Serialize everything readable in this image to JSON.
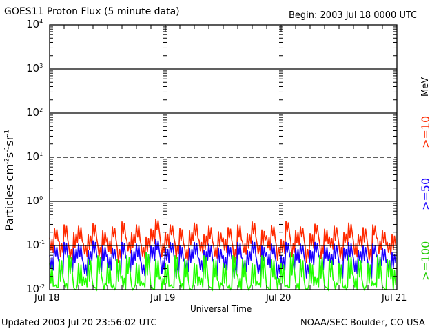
{
  "chart_data": {
    "type": "line",
    "title": "GOES11 Proton Flux (5 minute data)",
    "begin": "Begin: 2003 Jul 18 0000 UTC",
    "xlabel": "Universal Time",
    "ylabel": {
      "main": "Particles cm",
      "e1": "-2",
      "s": "s",
      "e2": "-1",
      "sr": "sr",
      "e3": "-1"
    },
    "yscale": "log",
    "ylim": [
      0.01,
      10000
    ],
    "yticks": [
      {
        "base": "10",
        "exp": "4",
        "value": 10000
      },
      {
        "base": "10",
        "exp": "3",
        "value": 1000
      },
      {
        "base": "10",
        "exp": "2",
        "value": 100
      },
      {
        "base": "10",
        "exp": "1",
        "value": 10
      },
      {
        "base": "10",
        "exp": "0",
        "value": 1
      },
      {
        "base": "10",
        "exp": "-1",
        "value": 0.1
      },
      {
        "base": "10",
        "exp": "-2",
        "value": 0.01
      }
    ],
    "xlim_days": [
      0,
      3
    ],
    "xticks": [
      {
        "label": "Jul 18",
        "day": 0
      },
      {
        "label": "Jul 19",
        "day": 1
      },
      {
        "label": "Jul 20",
        "day": 2
      },
      {
        "label": "Jul 21",
        "day": 3
      }
    ],
    "gridlines": [
      {
        "value": 1000,
        "style": "solid"
      },
      {
        "value": 100,
        "style": "solid"
      },
      {
        "value": 10,
        "style": "dashed"
      },
      {
        "value": 1,
        "style": "solid"
      },
      {
        "value": 0.1,
        "style": "solid"
      }
    ],
    "x_hours_step": 1,
    "series": [
      {
        "name": ">=10",
        "color": "#ff2a00",
        "values": [
          0.15,
          0.25,
          0.12,
          0.3,
          0.09,
          0.2,
          0.28,
          0.11,
          0.18,
          0.32,
          0.1,
          0.22,
          0.14,
          0.27,
          0.09,
          0.35,
          0.13,
          0.2,
          0.3,
          0.1,
          0.16,
          0.24,
          0.4,
          0.12,
          0.2,
          0.3,
          0.11,
          0.25,
          0.09,
          0.22,
          0.33,
          0.13,
          0.18,
          0.28,
          0.1,
          0.21,
          0.15,
          0.26,
          0.09,
          0.3,
          0.12,
          0.19,
          0.35,
          0.11,
          0.23,
          0.17,
          0.29,
          0.1,
          0.14,
          0.36,
          0.12,
          0.22,
          0.27,
          0.09,
          0.19,
          0.31,
          0.11,
          0.24,
          0.16,
          0.28,
          0.1,
          0.2,
          0.33,
          0.12,
          0.18,
          0.26,
          0.09,
          0.3,
          0.14,
          0.22,
          0.12,
          0.18
        ]
      },
      {
        "name": ">=50",
        "color": "#1a00ff",
        "values": [
          0.06,
          0.1,
          0.04,
          0.12,
          0.05,
          0.09,
          0.11,
          0.04,
          0.08,
          0.13,
          0.05,
          0.1,
          0.06,
          0.09,
          0.04,
          0.12,
          0.05,
          0.08,
          0.11,
          0.04,
          0.07,
          0.1,
          0.14,
          0.05,
          0.09,
          0.12,
          0.04,
          0.1,
          0.05,
          0.09,
          0.12,
          0.05,
          0.08,
          0.11,
          0.04,
          0.09,
          0.06,
          0.1,
          0.04,
          0.12,
          0.05,
          0.08,
          0.13,
          0.04,
          0.1,
          0.07,
          0.11,
          0.04,
          0.06,
          0.12,
          0.05,
          0.09,
          0.11,
          0.04,
          0.08,
          0.12,
          0.05,
          0.1,
          0.07,
          0.11,
          0.04,
          0.09,
          0.12,
          0.05,
          0.08,
          0.1,
          0.04,
          0.11,
          0.06,
          0.09,
          0.05,
          0.07
        ]
      },
      {
        "name": ">=100",
        "color": "#22ff00",
        "values": [
          0.04,
          0.012,
          0.05,
          0.015,
          0.06,
          0.011,
          0.04,
          0.02,
          0.05,
          0.012,
          0.06,
          0.015,
          0.04,
          0.011,
          0.05,
          0.02,
          0.06,
          0.012,
          0.04,
          0.015,
          0.07,
          0.011,
          0.05,
          0.02,
          0.04,
          0.012,
          0.06,
          0.015,
          0.05,
          0.011,
          0.04,
          0.02,
          0.06,
          0.012,
          0.05,
          0.015,
          0.04,
          0.011,
          0.06,
          0.02,
          0.05,
          0.012,
          0.04,
          0.015,
          0.06,
          0.011,
          0.05,
          0.02,
          0.04,
          0.012,
          0.07,
          0.015,
          0.05,
          0.011,
          0.04,
          0.02,
          0.06,
          0.012,
          0.05,
          0.015,
          0.04,
          0.011,
          0.06,
          0.02,
          0.05,
          0.012,
          0.04,
          0.015,
          0.06,
          0.011,
          0.05,
          0.03
        ]
      }
    ],
    "unit_label": "MeV"
  },
  "footer": {
    "updated": "Updated 2003 Jul 20 23:56:02 UTC",
    "credit": "NOAA/SEC Boulder, CO USA"
  }
}
